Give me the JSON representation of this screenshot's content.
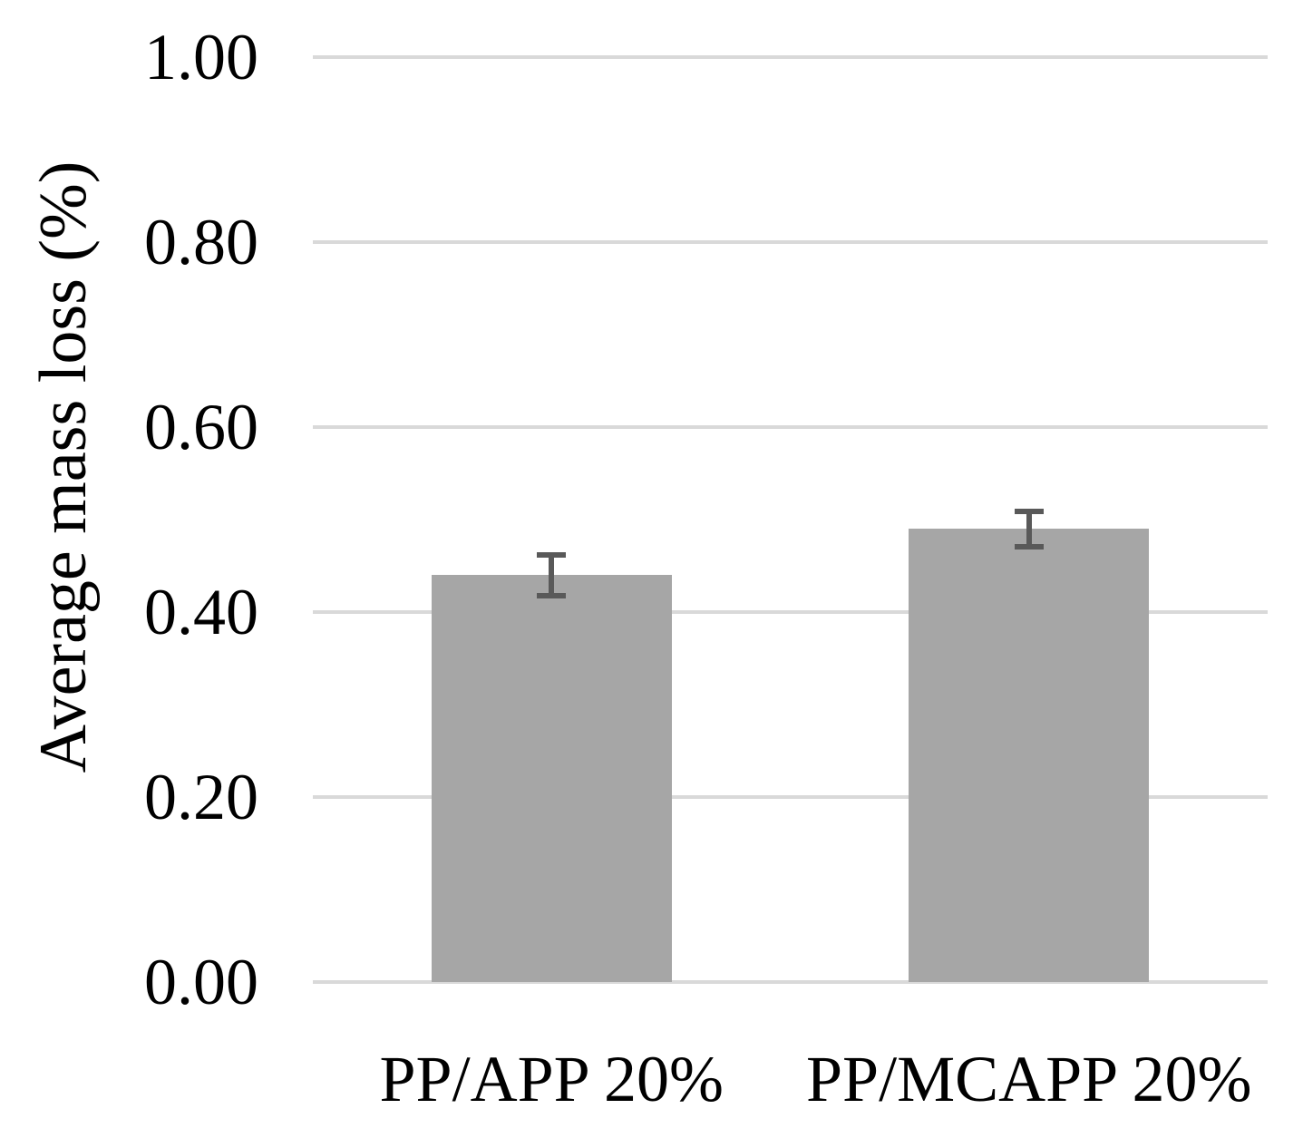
{
  "chart_data": {
    "type": "bar",
    "title": "",
    "xlabel": "",
    "ylabel": "Average mass loss (%)",
    "categories": [
      "PP/APP 20%",
      "PP/MCAPP 20%"
    ],
    "series": [
      {
        "name": "Average mass loss",
        "values": [
          0.44,
          0.49
        ],
        "errors": [
          0.022,
          0.019
        ]
      }
    ],
    "ylim": [
      0,
      1.0
    ],
    "yticks": [
      {
        "value": 0.0,
        "label": "0.00"
      },
      {
        "value": 0.2,
        "label": "0.20"
      },
      {
        "value": 0.4,
        "label": "0.40"
      },
      {
        "value": 0.6,
        "label": "0.60"
      },
      {
        "value": 0.8,
        "label": "0.80"
      },
      {
        "value": 1.0,
        "label": "1.00"
      }
    ],
    "grid": "horizontal",
    "legend": "none",
    "colors": {
      "bar": "#a6a6a6",
      "error_bar": "#595959",
      "gridline": "#d9d9d9",
      "text": "#000000"
    }
  }
}
